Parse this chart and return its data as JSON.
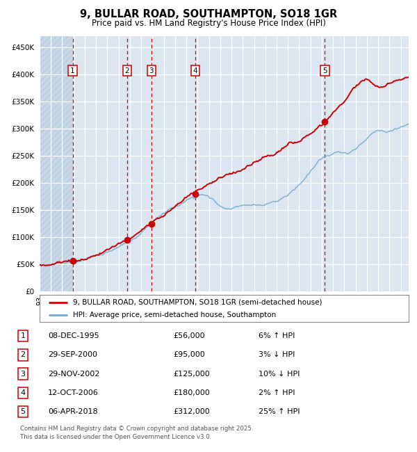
{
  "title1": "9, BULLAR ROAD, SOUTHAMPTON, SO18 1GR",
  "title2": "Price paid vs. HM Land Registry's House Price Index (HPI)",
  "sale_points": [
    {
      "num": 1,
      "date": "08-DEC-1995",
      "price": 56000,
      "year": 1995.93
    },
    {
      "num": 2,
      "date": "29-SEP-2000",
      "price": 95000,
      "year": 2000.75
    },
    {
      "num": 3,
      "date": "29-NOV-2002",
      "price": 125000,
      "year": 2002.91
    },
    {
      "num": 4,
      "date": "12-OCT-2006",
      "price": 180000,
      "year": 2006.78
    },
    {
      "num": 5,
      "date": "06-APR-2018",
      "price": 312000,
      "year": 2018.27
    }
  ],
  "legend_line1": "9, BULLAR ROAD, SOUTHAMPTON, SO18 1GR (semi-detached house)",
  "legend_line2": "HPI: Average price, semi-detached house, Southampton",
  "table": [
    [
      "1",
      "08-DEC-1995",
      "£56,000",
      "6% ↑ HPI"
    ],
    [
      "2",
      "29-SEP-2000",
      "£95,000",
      "3% ↓ HPI"
    ],
    [
      "3",
      "29-NOV-2002",
      "£125,000",
      "10% ↓ HPI"
    ],
    [
      "4",
      "12-OCT-2006",
      "£180,000",
      "2% ↑ HPI"
    ],
    [
      "5",
      "06-APR-2018",
      "£312,000",
      "25% ↑ HPI"
    ]
  ],
  "footer": "Contains HM Land Registry data © Crown copyright and database right 2025.\nThis data is licensed under the Open Government Licence v3.0.",
  "bg_color": "#dce6f1",
  "red_line_color": "#cc0000",
  "blue_line_color": "#6fa8d5",
  "vline_color": "#cc0000",
  "ylim": [
    0,
    470000
  ],
  "xlim": [
    1993.0,
    2025.7
  ]
}
